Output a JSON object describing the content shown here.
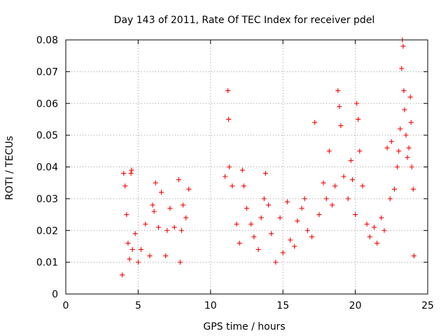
{
  "chart_data": {
    "type": "scatter",
    "title": "Day 143 of 2011, Rate Of TEC Index for receiver pdel",
    "xlabel": "GPS time / hours",
    "ylabel": "ROTI / TECUs",
    "xlim": [
      0,
      25
    ],
    "ylim": [
      0,
      0.08
    ],
    "xticks": [
      0,
      5,
      10,
      15,
      20,
      25
    ],
    "xtick_labels": [
      "0",
      "5",
      "10",
      "15",
      "20",
      "25"
    ],
    "yticks": [
      0,
      0.01,
      0.02,
      0.03,
      0.04,
      0.05,
      0.06,
      0.07,
      0.08
    ],
    "ytick_labels": [
      "0",
      "0.01",
      "0.02",
      "0.03",
      "0.04",
      "0.05",
      "0.06",
      "0.07",
      "0.08"
    ],
    "grid": true,
    "marker": "+",
    "color": "#ff0000",
    "series": [
      {
        "points": [
          [
            3.9,
            0.006
          ],
          [
            4.0,
            0.038
          ],
          [
            4.1,
            0.034
          ],
          [
            4.2,
            0.025
          ],
          [
            4.3,
            0.016
          ],
          [
            4.4,
            0.011
          ],
          [
            4.5,
            0.038
          ],
          [
            4.55,
            0.039
          ],
          [
            4.6,
            0.014
          ],
          [
            4.8,
            0.019
          ],
          [
            5.0,
            0.01
          ],
          [
            5.2,
            0.014
          ],
          [
            5.5,
            0.022
          ],
          [
            5.8,
            0.012
          ],
          [
            6.0,
            0.028
          ],
          [
            6.1,
            0.026
          ],
          [
            6.2,
            0.035
          ],
          [
            6.4,
            0.021
          ],
          [
            6.6,
            0.032
          ],
          [
            6.9,
            0.012
          ],
          [
            7.0,
            0.02
          ],
          [
            7.2,
            0.027
          ],
          [
            7.5,
            0.021
          ],
          [
            7.8,
            0.036
          ],
          [
            7.9,
            0.01
          ],
          [
            8.0,
            0.02
          ],
          [
            8.1,
            0.028
          ],
          [
            8.3,
            0.024
          ],
          [
            8.5,
            0.033
          ],
          [
            11.0,
            0.037
          ],
          [
            11.2,
            0.064
          ],
          [
            11.25,
            0.055
          ],
          [
            11.3,
            0.04
          ],
          [
            11.5,
            0.034
          ],
          [
            11.8,
            0.022
          ],
          [
            12.0,
            0.016
          ],
          [
            12.2,
            0.039
          ],
          [
            12.3,
            0.034
          ],
          [
            12.5,
            0.027
          ],
          [
            12.8,
            0.022
          ],
          [
            13.0,
            0.018
          ],
          [
            13.3,
            0.014
          ],
          [
            13.5,
            0.024
          ],
          [
            13.7,
            0.03
          ],
          [
            13.8,
            0.038
          ],
          [
            14.0,
            0.028
          ],
          [
            14.2,
            0.019
          ],
          [
            14.5,
            0.01
          ],
          [
            14.8,
            0.024
          ],
          [
            15.0,
            0.013
          ],
          [
            15.3,
            0.029
          ],
          [
            15.5,
            0.017
          ],
          [
            15.8,
            0.015
          ],
          [
            16.0,
            0.023
          ],
          [
            16.3,
            0.027
          ],
          [
            16.5,
            0.03
          ],
          [
            16.7,
            0.02
          ],
          [
            17.0,
            0.018
          ],
          [
            17.2,
            0.054
          ],
          [
            17.5,
            0.025
          ],
          [
            17.8,
            0.035
          ],
          [
            18.0,
            0.03
          ],
          [
            18.2,
            0.045
          ],
          [
            18.4,
            0.028
          ],
          [
            18.6,
            0.034
          ],
          [
            18.8,
            0.064
          ],
          [
            18.9,
            0.059
          ],
          [
            19.0,
            0.053
          ],
          [
            19.2,
            0.037
          ],
          [
            19.5,
            0.03
          ],
          [
            19.7,
            0.042
          ],
          [
            19.8,
            0.036
          ],
          [
            20.0,
            0.025
          ],
          [
            20.1,
            0.06
          ],
          [
            20.2,
            0.055
          ],
          [
            20.3,
            0.045
          ],
          [
            20.5,
            0.034
          ],
          [
            20.8,
            0.022
          ],
          [
            21.0,
            0.018
          ],
          [
            21.3,
            0.021
          ],
          [
            21.5,
            0.016
          ],
          [
            21.8,
            0.024
          ],
          [
            22.0,
            0.02
          ],
          [
            22.2,
            0.046
          ],
          [
            22.4,
            0.03
          ],
          [
            22.5,
            0.048
          ],
          [
            22.7,
            0.033
          ],
          [
            22.9,
            0.04
          ],
          [
            23.0,
            0.045
          ],
          [
            23.1,
            0.052
          ],
          [
            23.2,
            0.071
          ],
          [
            23.25,
            0.08
          ],
          [
            23.3,
            0.078
          ],
          [
            23.35,
            0.064
          ],
          [
            23.4,
            0.058
          ],
          [
            23.5,
            0.05
          ],
          [
            23.6,
            0.043
          ],
          [
            23.7,
            0.046
          ],
          [
            23.8,
            0.062
          ],
          [
            23.85,
            0.054
          ],
          [
            23.9,
            0.04
          ],
          [
            24.0,
            0.033
          ],
          [
            24.05,
            0.012
          ]
        ]
      }
    ]
  }
}
